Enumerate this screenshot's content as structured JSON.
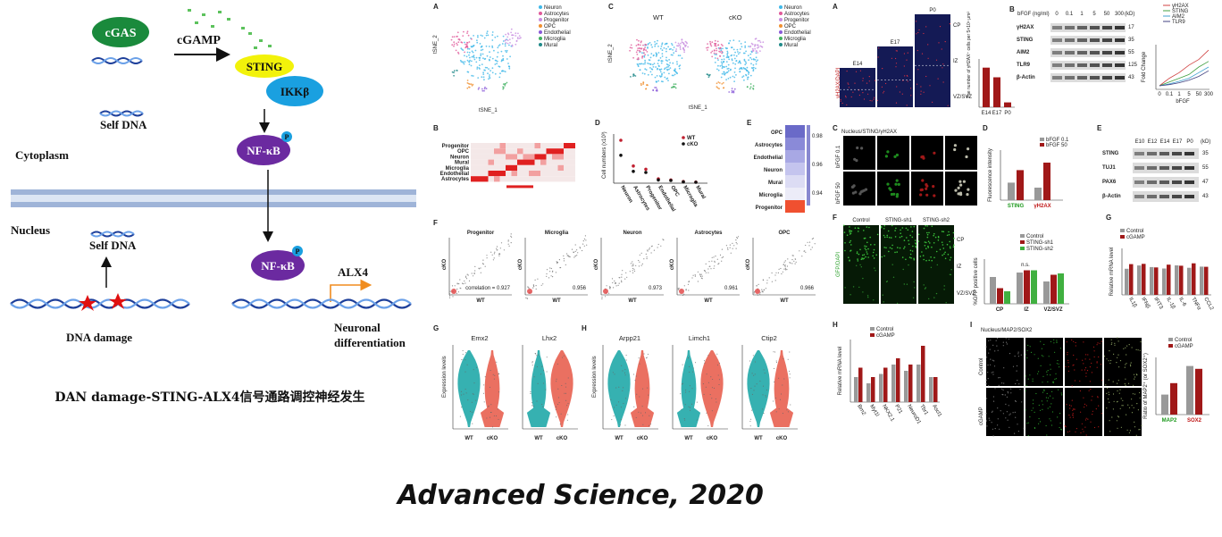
{
  "journal": "Advanced Science, 2020",
  "pathway": {
    "caption": "DAN damage-STING-ALX4信号通路调控神经发生",
    "cgas": "cGAS",
    "cgamp": "cGAMP",
    "sting": "STING",
    "ikkb": "IKKβ",
    "self_dna_top": "Self DNA",
    "cytoplasm": "Cytoplasm",
    "nfkb": "NF-κB",
    "phospho": "P",
    "nucleus": "Nucleus",
    "self_dna_bottom": "Self DNA",
    "dna_damage": "DNA damage",
    "alx4": "ALX4",
    "neuronal": "Neuronal",
    "differentiation": "differentiation",
    "colors": {
      "cgas": "#1a8a3c",
      "sting": "#f2f20a",
      "ikkb": "#1aa0e0",
      "nfkb": "#6b2aa0",
      "membrane": "#9fb4d8",
      "arrow_orange": "#f08c1e",
      "damage": "#e01010"
    }
  },
  "mid": {
    "A": {
      "label": "A",
      "xlabel": "tSNE_1",
      "ylabel": "tSNE_2"
    },
    "C": {
      "label": "C",
      "wt": "WT",
      "cko": "cKO",
      "xlabel": "tSNE_1",
      "ylabel": "tSNE_2"
    },
    "legend": [
      {
        "name": "Neuron",
        "color": "#3fb8e8"
      },
      {
        "name": "Astrocytes",
        "color": "#e05a9a"
      },
      {
        "name": "Progenitor",
        "color": "#c88de0"
      },
      {
        "name": "OPC",
        "color": "#f09030"
      },
      {
        "name": "Endothelial",
        "color": "#8a5ad8"
      },
      {
        "name": "Microglia",
        "color": "#40b060"
      },
      {
        "name": "Mural",
        "color": "#208a8a"
      }
    ],
    "B": {
      "label": "B",
      "rows": [
        "Progenitor",
        "OPC",
        "Neuron",
        "Mural",
        "Microglia",
        "Endothelial",
        "Astrocytes"
      ]
    },
    "D": {
      "label": "D",
      "ylabel": "Cell numbers (x10³)",
      "wt": "WT",
      "cko": "cKO"
    },
    "E": {
      "label": "E",
      "rows": [
        "OPC",
        "Astrocytes",
        "Endothelial",
        "Neuron",
        "Mural",
        "Microglia",
        "Progenitor"
      ],
      "scale": [
        "0.98",
        "0.96",
        "0.94"
      ]
    },
    "F": {
      "label": "F",
      "panels": [
        "Progenitor",
        "Microglia",
        "Neuron",
        "Astrocytes",
        "OPC"
      ],
      "corr_label": "correlation = 0.927",
      "values": [
        "0.927",
        "0.956",
        "0.973",
        "0.961",
        "0.966"
      ],
      "xlabel": "WT",
      "ylabel": "cKO"
    },
    "G": {
      "label": "G",
      "genes": [
        "Emx2",
        "Lhx2"
      ],
      "ylabel": "Expression levels",
      "wt": "WT",
      "cko": "cKO"
    },
    "H": {
      "label": "H",
      "genes": [
        "Arpp21",
        "Limch1",
        "Ctip2"
      ],
      "ylabel": "Expression levels",
      "wt": "WT",
      "cko": "cKO"
    }
  },
  "right": {
    "A": {
      "label": "A",
      "stages": [
        "E14",
        "E17",
        "P0"
      ],
      "zones": [
        "CP",
        "IZ",
        "VZ/SVZ"
      ],
      "stain": "γH2AX/DAPI"
    },
    "A_bar": {
      "ylabel": "The number of γH2AX⁺ cells per 5×10⁴ μm²",
      "cats": [
        "E14",
        "E17",
        "P0"
      ]
    },
    "B": {
      "label": "B",
      "header": "bFGF (ng/ml)",
      "doses": [
        "0",
        "0.1",
        "1",
        "5",
        "50",
        "300"
      ],
      "kd": "(kD)",
      "rows": [
        [
          "γH2AX",
          "17"
        ],
        [
          "STING",
          "35"
        ],
        [
          "AIM2",
          "55"
        ],
        [
          "TLR9",
          "125"
        ],
        [
          "β-Actin",
          "43"
        ]
      ]
    },
    "B_line": {
      "legend": [
        "γH2AX",
        "STING",
        "AIM2",
        "TLR9"
      ],
      "xlabel": "bFGF",
      "ylabel": "Fold Change",
      "ticks": [
        "0",
        "0.1",
        "1",
        "5",
        "50",
        "300"
      ]
    },
    "C": {
      "label": "C",
      "stain": "Nucleus/STING/γH2AX",
      "rows": [
        "bFGF 0.1",
        "bFGF 50"
      ]
    },
    "D": {
      "label": "D",
      "legend": [
        "bFGF 0.1",
        "bFGF 50"
      ],
      "ylabel": "Fluorescence intensity",
      "cats": [
        "STING",
        "γH2AX"
      ]
    },
    "E": {
      "label": "E",
      "stages": [
        "E10",
        "E12",
        "E14",
        "E17",
        "P0"
      ],
      "kd": "(kD)",
      "rows": [
        [
          "STING",
          "35"
        ],
        [
          "TUJ1",
          "55"
        ],
        [
          "PAX6",
          "47"
        ],
        [
          "β-Actin",
          "43"
        ]
      ]
    },
    "F": {
      "label": "F",
      "cols": [
        "Control",
        "STING-sh1",
        "STING-sh2"
      ],
      "stain": "GFP/DAPI",
      "zones": [
        "CP",
        "IZ",
        "VZ/SVZ"
      ]
    },
    "F_bar": {
      "legend": [
        "Control",
        "STING-sh1",
        "STING-sh2"
      ],
      "ylabel": "%GFP positive cells",
      "cats": [
        "CP",
        "IZ",
        "VZ/SVZ"
      ],
      "ns": "n.s."
    },
    "G": {
      "label": "G",
      "legend": [
        "Control",
        "cGAMP"
      ],
      "ylabel": "Relative mRNA level",
      "genes": [
        "IL1β",
        "IFNβ",
        "IFIT3",
        "IL-1β",
        "IL-6",
        "TNFα",
        "CCL2"
      ]
    },
    "H": {
      "label": "H",
      "legend": [
        "Control",
        "cGAMP"
      ],
      "ylabel": "Relative mRNA level",
      "genes": [
        "Brn2",
        "Myt1l",
        "NKX2.1",
        "P21",
        "NeuroD1",
        "Tbr1",
        "Ascl1"
      ]
    },
    "I": {
      "label": "I",
      "stain": "Nucleus/MAP2/SOX2",
      "rows": [
        "Control",
        "cGAMP"
      ]
    },
    "I_bar": {
      "legend": [
        "Control",
        "cGAMP"
      ],
      "ylabel": "Ratio of MAP2⁺ (or SOX2⁺)",
      "cats": [
        "MAP2",
        "SOX2"
      ]
    }
  }
}
